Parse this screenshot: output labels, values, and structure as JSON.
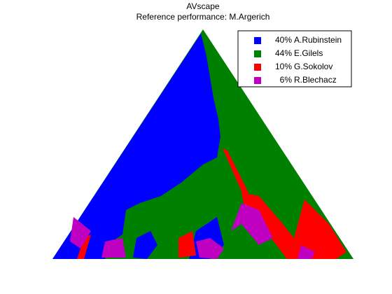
{
  "chart_data": {
    "type": "ternary-map",
    "title": "AVscape",
    "subtitle": "Reference performance: M.Argerich",
    "categories": [
      "A.Rubinstein",
      "E.Gilels",
      "G.Sokolov",
      "R.Blechacz"
    ],
    "values": [
      40,
      44,
      10,
      6
    ],
    "value_labels": [
      "40%",
      "44%",
      "10%",
      "6%"
    ],
    "colors": [
      "#0000ff",
      "#008000",
      "#ff0000",
      "#c000c0"
    ],
    "legend": "upper right"
  }
}
